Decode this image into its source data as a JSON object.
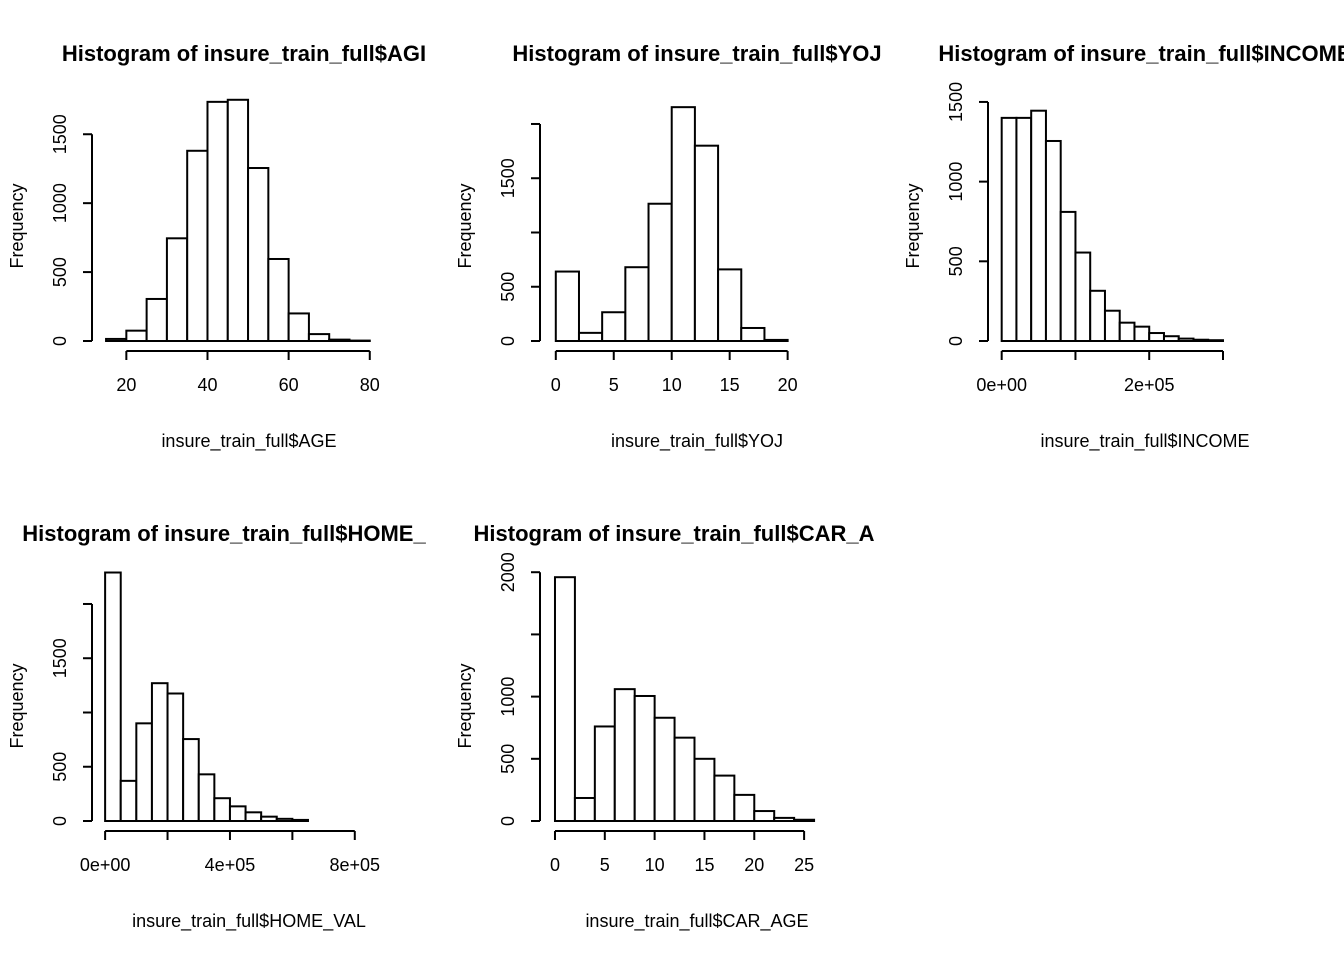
{
  "figure": {
    "background": "#ffffff",
    "bar_fill": "#ffffff",
    "stroke": "#000000"
  },
  "chart_data": [
    {
      "type": "bar",
      "title": "Histogram of insure_train_full$AGE",
      "title_visible": "Histogram of insure_train_full$AGI",
      "xlabel": "insure_train_full$AGE",
      "ylabel": "Frequency",
      "breaks": [
        15,
        20,
        25,
        30,
        35,
        40,
        45,
        50,
        55,
        60,
        65,
        70,
        75,
        80
      ],
      "values": [
        15,
        75,
        305,
        745,
        1380,
        1735,
        1750,
        1255,
        595,
        200,
        50,
        10,
        3
      ],
      "xlim": [
        14,
        84
      ],
      "ylim": [
        0,
        1850
      ],
      "xticks": [
        20,
        40,
        60,
        80
      ],
      "xtick_labels": [
        "20",
        "40",
        "60",
        "80"
      ],
      "yticks": [
        0,
        500,
        1000,
        1500
      ],
      "ytick_labels": [
        "0",
        "500",
        "1000",
        "1500"
      ]
    },
    {
      "type": "bar",
      "title": "Histogram of insure_train_full$YOJ",
      "title_visible": "Histogram of insure_train_full$YOJ",
      "xlabel": "insure_train_full$YOJ",
      "ylabel": "Frequency",
      "breaks": [
        0,
        2,
        4,
        6,
        8,
        10,
        12,
        14,
        16,
        18,
        20
      ],
      "values": [
        640,
        75,
        265,
        680,
        1265,
        2155,
        1800,
        660,
        120,
        10
      ],
      "xlim": [
        -0.5,
        24
      ],
      "ylim": [
        0,
        2350
      ],
      "xticks": [
        0,
        5,
        10,
        15,
        20
      ],
      "xtick_labels": [
        "0",
        "5",
        "10",
        "15",
        "20"
      ],
      "yticks": [
        0,
        500,
        1500
      ],
      "ytick_labels": [
        "0",
        "500",
        "1500"
      ],
      "yticks_minor": [
        1000,
        2000
      ]
    },
    {
      "type": "bar",
      "title": "Histogram of insure_train_full$INCOME",
      "title_visible": "Histogram of insure_train_full$INCOME",
      "xlabel": "insure_train_full$INCOME",
      "ylabel": "Frequency",
      "breaks": [
        0,
        20000,
        40000,
        60000,
        80000,
        100000,
        120000,
        140000,
        160000,
        180000,
        200000,
        220000,
        240000,
        260000,
        280000,
        300000
      ],
      "values": [
        1400,
        1400,
        1445,
        1255,
        810,
        555,
        315,
        190,
        115,
        90,
        50,
        30,
        15,
        8,
        5
      ],
      "xlim": [
        -5000,
        380000
      ],
      "ylim": [
        0,
        1600
      ],
      "xticks": [
        0,
        100000,
        200000,
        300000
      ],
      "xtick_labels": [
        "0e+00",
        "",
        "2e+05",
        ""
      ],
      "yticks": [
        0,
        500,
        1000,
        1500
      ],
      "ytick_labels": [
        "0",
        "500",
        "1000",
        "1500"
      ]
    },
    {
      "type": "bar",
      "title": "Histogram of insure_train_full$HOME_VAL",
      "title_visible": "Histogram of insure_train_full$HOME_",
      "xlabel": "insure_train_full$HOME_VAL",
      "ylabel": "Frequency",
      "breaks": [
        0,
        50000,
        100000,
        150000,
        200000,
        250000,
        300000,
        350000,
        400000,
        450000,
        500000,
        550000,
        600000,
        650000
      ],
      "values": [
        2290,
        370,
        900,
        1270,
        1175,
        755,
        430,
        210,
        135,
        80,
        40,
        20,
        10
      ],
      "xlim": [
        -10000,
        900000
      ],
      "ylim": [
        0,
        2350
      ],
      "xticks": [
        0,
        200000,
        400000,
        600000,
        800000
      ],
      "xtick_labels": [
        "0e+00",
        "",
        "4e+05",
        "",
        "8e+05"
      ],
      "yticks": [
        0,
        500,
        1500
      ],
      "ytick_labels": [
        "0",
        "500",
        "1500"
      ],
      "yticks_minor": [
        1000,
        2000
      ]
    },
    {
      "type": "bar",
      "title": "Histogram of insure_train_full$CAR_AGE",
      "title_visible": "Histogram of insure_train_full$CAR_A",
      "xlabel": "insure_train_full$CAR_AGE",
      "ylabel": "Frequency",
      "breaks": [
        0,
        2,
        4,
        6,
        8,
        10,
        12,
        14,
        16,
        18,
        20,
        22,
        24,
        26
      ],
      "values": [
        1960,
        185,
        760,
        1060,
        1005,
        830,
        670,
        500,
        365,
        210,
        80,
        25,
        10
      ],
      "xlim": [
        -0.5,
        28
      ],
      "ylim": [
        0,
        2050
      ],
      "xticks": [
        0,
        5,
        10,
        15,
        20,
        25
      ],
      "xtick_labels": [
        "0",
        "5",
        "10",
        "15",
        "20",
        "25"
      ],
      "yticks": [
        0,
        500,
        1000,
        1500,
        2000
      ],
      "ytick_labels": [
        "0",
        "500",
        "1000",
        "",
        "2000"
      ]
    }
  ]
}
